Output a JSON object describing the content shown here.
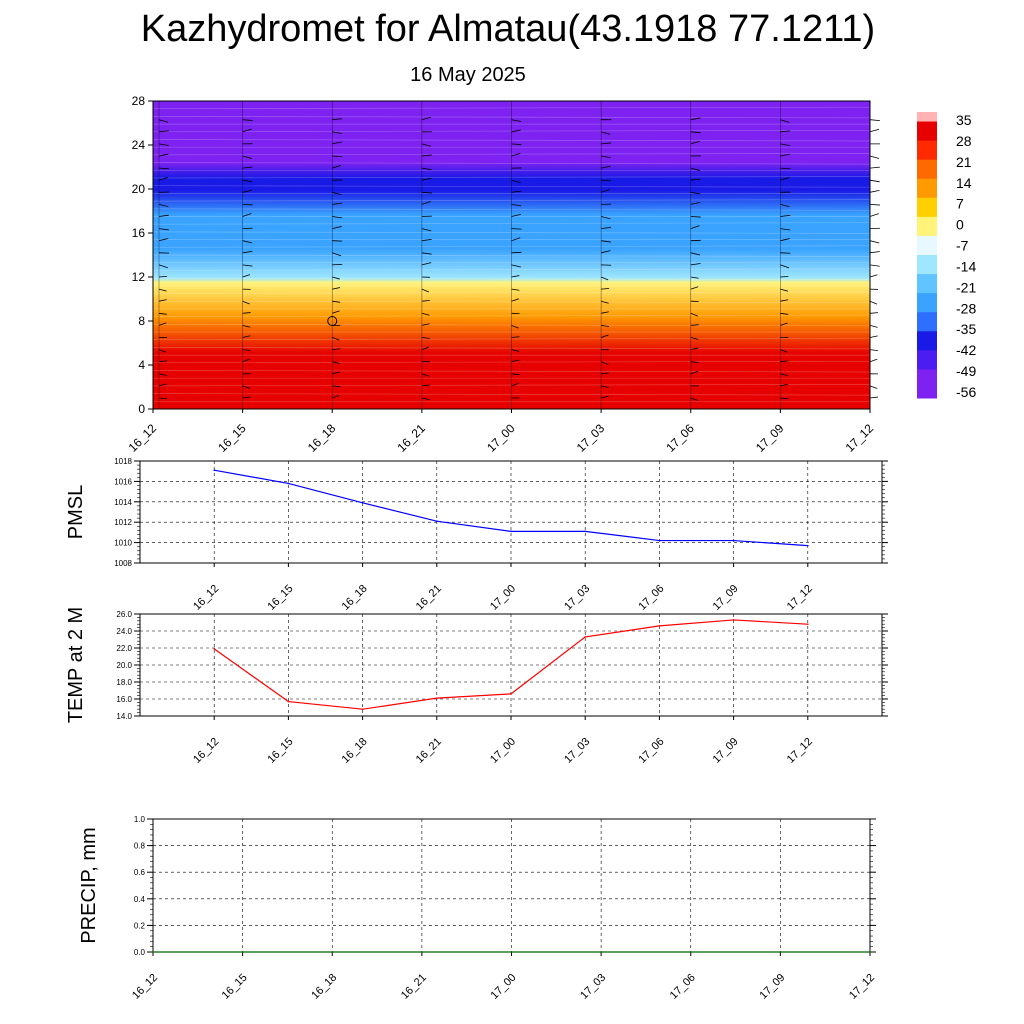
{
  "title": "Kazhydromet for Almatau(43.1918 77.1211)",
  "subtitle": "16 May 2025",
  "chart_data": [
    {
      "type": "heatmap",
      "name": "temperature-cross-section",
      "x_ticks": [
        "16_12",
        "16_15",
        "16_18",
        "16_21",
        "17_00",
        "17_03",
        "17_06",
        "17_09",
        "17_12"
      ],
      "y_ticks": [
        "0",
        "4",
        "8",
        "12",
        "16",
        "20",
        "24",
        "28"
      ],
      "ylim": [
        0,
        28
      ],
      "colorbar": {
        "labels": [
          "35",
          "28",
          "21",
          "14",
          "7",
          "0",
          "-7",
          "-14",
          "-21",
          "-28",
          "-35",
          "-42",
          "-49",
          "-56"
        ],
        "range": [
          -63,
          39
        ]
      },
      "colors": {
        "hot": "#e60000",
        "orange": "#ff9a00",
        "yellow": "#fff37a",
        "lightblue": "#9fe7ff",
        "midblue": "#3aa3ff",
        "darkblue": "#1a1ae6",
        "purple": "#7d22f0"
      }
    },
    {
      "type": "line",
      "name": "pmsl",
      "ylabel": "PMSL",
      "x_ticks": [
        "16_12",
        "16_15",
        "16_18",
        "16_21",
        "17_00",
        "17_03",
        "17_06",
        "17_09",
        "17_12"
      ],
      "y_ticks": [
        "1008",
        "1010",
        "1012",
        "1014",
        "1016",
        "1018"
      ],
      "ylim": [
        1008,
        1018
      ],
      "values": [
        1017.1,
        1015.8,
        1013.9,
        1012.1,
        1011.1,
        1011.1,
        1010.2,
        1010.2,
        1009.7
      ],
      "color": "#0000ff"
    },
    {
      "type": "line",
      "name": "temp-2m",
      "ylabel": "TEMP at 2 M",
      "x_ticks": [
        "16_12",
        "16_15",
        "16_18",
        "16_21",
        "17_00",
        "17_03",
        "17_06",
        "17_09",
        "17_12"
      ],
      "y_ticks": [
        "14.0",
        "16.0",
        "18.0",
        "20.0",
        "22.0",
        "24.0",
        "26.0"
      ],
      "ylim": [
        14,
        26
      ],
      "values": [
        21.9,
        15.7,
        14.8,
        16.1,
        16.6,
        23.3,
        24.6,
        25.3,
        24.8
      ],
      "color": "#ff0000"
    },
    {
      "type": "line",
      "name": "precip",
      "ylabel": "PRECIP, mm",
      "x_ticks": [
        "16_12",
        "16_15",
        "16_18",
        "16_21",
        "17_00",
        "17_03",
        "17_06",
        "17_09",
        "17_12"
      ],
      "y_ticks": [
        "0.0",
        "0.2",
        "0.4",
        "0.6",
        "0.8",
        "1.0"
      ],
      "ylim": [
        0,
        1
      ],
      "values": [
        0,
        0,
        0,
        0,
        0,
        0,
        0,
        0,
        0
      ],
      "color": "#006400"
    }
  ]
}
